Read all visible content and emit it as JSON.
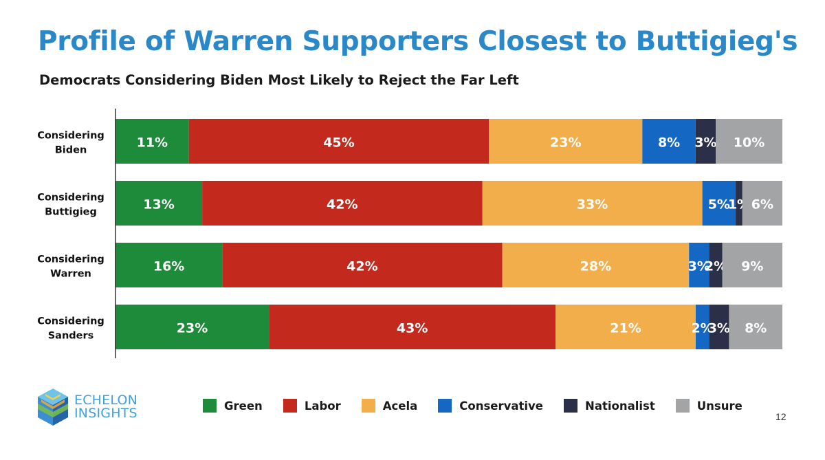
{
  "header": {
    "title": "Profile of Warren Supporters Closest to Buttigieg's",
    "subtitle": "Democrats Considering Biden Most Likely to Reject the Far Left"
  },
  "colors": {
    "title": "#2b88c8",
    "Green": "#1d8b3a",
    "Labor": "#c32a1d",
    "Acela": "#f1ae4b",
    "Conservative": "#1567c4",
    "Nationalist": "#2b2f48",
    "Unsure": "#a2a4a6",
    "logo_text": "#3fa0d8"
  },
  "chart_data": {
    "type": "bar",
    "orientation": "horizontal",
    "stacked": true,
    "title": "Profile of Warren Supporters Closest to Buttigieg's",
    "subtitle": "Democrats Considering Biden Most Likely to Reject the Far Left",
    "xlabel": "",
    "ylabel": "",
    "categories": [
      [
        "Considering",
        "Biden"
      ],
      [
        "Considering",
        "Buttigieg"
      ],
      [
        "Considering",
        "Warren"
      ],
      [
        "Considering",
        "Sanders"
      ]
    ],
    "xlim": [
      0,
      100
    ],
    "grid": false,
    "legend_position": "bottom",
    "series": [
      {
        "name": "Green",
        "values": [
          11,
          13,
          16,
          23
        ],
        "labels": [
          "11%",
          "13%",
          "16%",
          "23%"
        ]
      },
      {
        "name": "Labor",
        "values": [
          45,
          42,
          42,
          43
        ],
        "labels": [
          "45%",
          "42%",
          "42%",
          "43%"
        ]
      },
      {
        "name": "Acela",
        "values": [
          23,
          33,
          28,
          21
        ],
        "labels": [
          "23%",
          "33%",
          "28%",
          "21%"
        ]
      },
      {
        "name": "Conservative",
        "values": [
          8,
          5,
          3,
          2
        ],
        "labels": [
          "8%",
          "5%",
          "3%",
          "2%"
        ]
      },
      {
        "name": "Nationalist",
        "values": [
          3,
          1,
          2,
          3
        ],
        "labels": [
          "3%",
          "1%",
          "2%",
          "3%"
        ]
      },
      {
        "name": "Unsure",
        "values": [
          10,
          6,
          9,
          8
        ],
        "labels": [
          "10%",
          "6%",
          "9%",
          "8%"
        ]
      }
    ]
  },
  "legend": {
    "items": [
      "Green",
      "Labor",
      "Acela",
      "Conservative",
      "Nationalist",
      "Unsure"
    ]
  },
  "logo": {
    "line1": "ECHELON",
    "line2": "INSIGHTS"
  },
  "footer": {
    "page_number": "12"
  }
}
